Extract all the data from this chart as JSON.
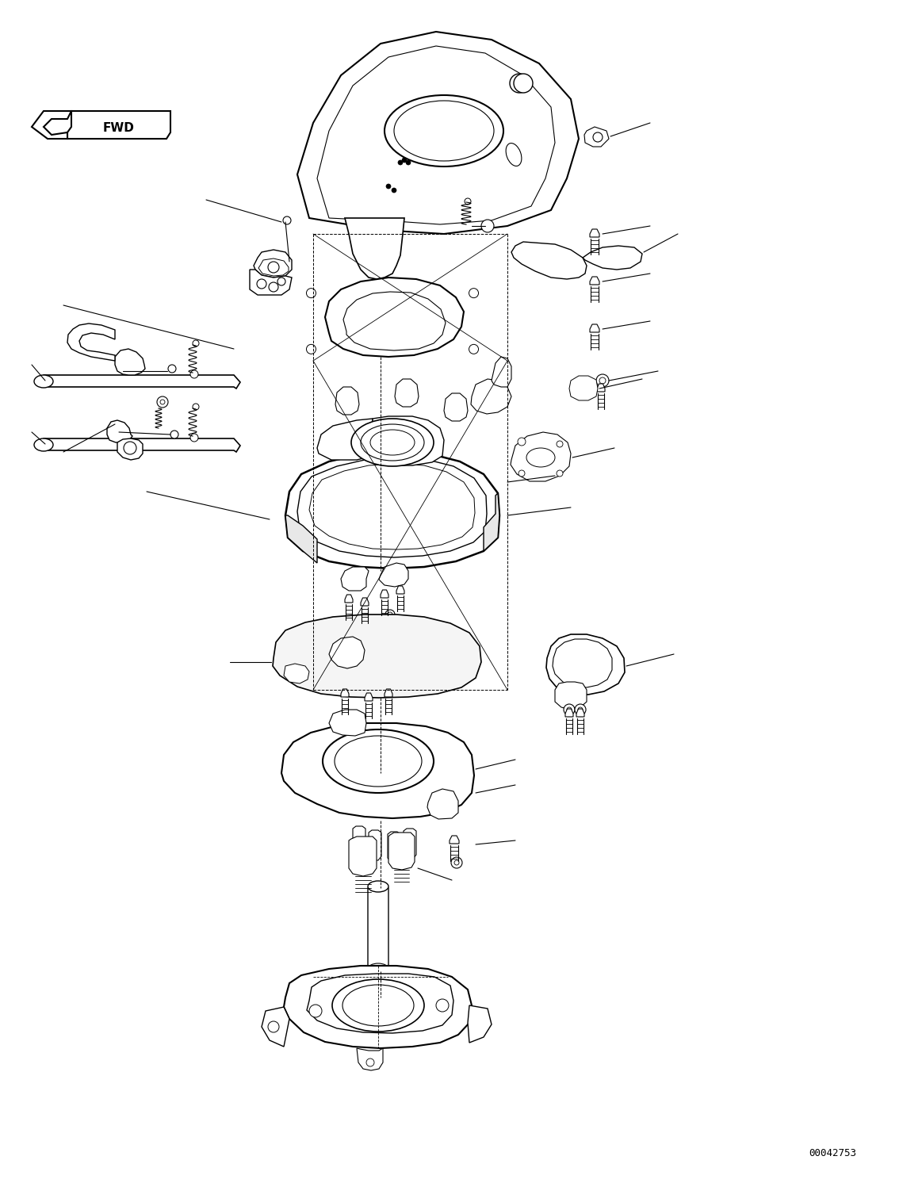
{
  "figure_width": 11.39,
  "figure_height": 14.92,
  "dpi": 100,
  "background_color": "#ffffff",
  "line_color": "#000000",
  "part_number_text": "00042753",
  "fwd_label": "FWD"
}
